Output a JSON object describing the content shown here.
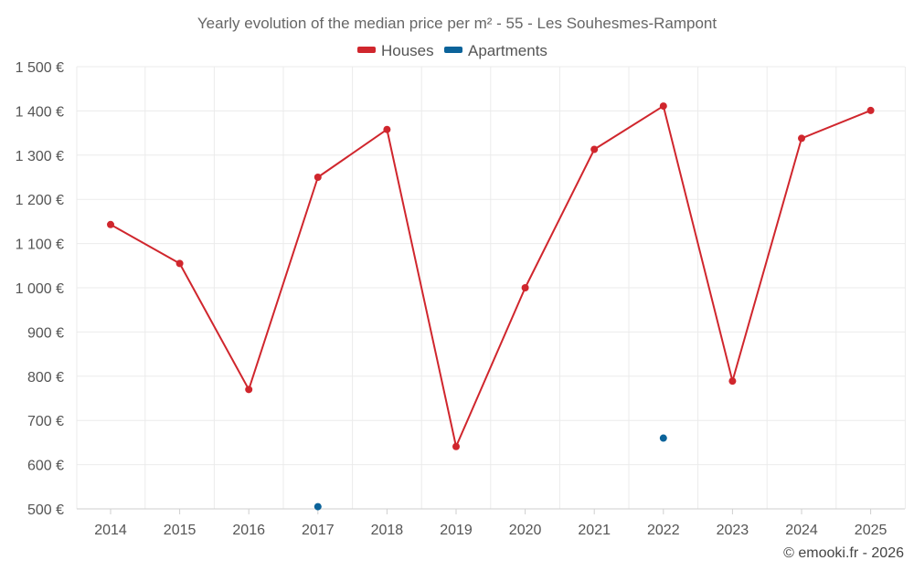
{
  "chart_data": {
    "type": "line",
    "title": "Yearly evolution of the median price per m² - 55 - Les Souhesmes-Rampont",
    "xlabel": "",
    "ylabel": "",
    "categories": [
      "2014",
      "2015",
      "2016",
      "2017",
      "2018",
      "2019",
      "2020",
      "2021",
      "2022",
      "2023",
      "2024",
      "2025"
    ],
    "ylim": [
      500,
      1500
    ],
    "yticks": [
      500,
      600,
      700,
      800,
      900,
      1000,
      1100,
      1200,
      1300,
      1400,
      1500
    ],
    "ytick_labels": [
      "500 €",
      "600 €",
      "700 €",
      "800 €",
      "900 €",
      "1 000 €",
      "1 100 €",
      "1 200 €",
      "1 300 €",
      "1 400 €",
      "1 500 €"
    ],
    "grid": true,
    "legend_position": "top-center",
    "series": [
      {
        "name": "Houses",
        "color": "#d0262d",
        "values": [
          1143,
          1055,
          770,
          1250,
          1358,
          641,
          1000,
          1313,
          1411,
          789,
          1338,
          1401
        ]
      },
      {
        "name": "Apartments",
        "color": "#0b639a",
        "values": [
          null,
          null,
          null,
          505,
          null,
          null,
          null,
          null,
          660,
          null,
          null,
          null
        ]
      }
    ]
  },
  "credit": "© emooki.fr - 2026"
}
